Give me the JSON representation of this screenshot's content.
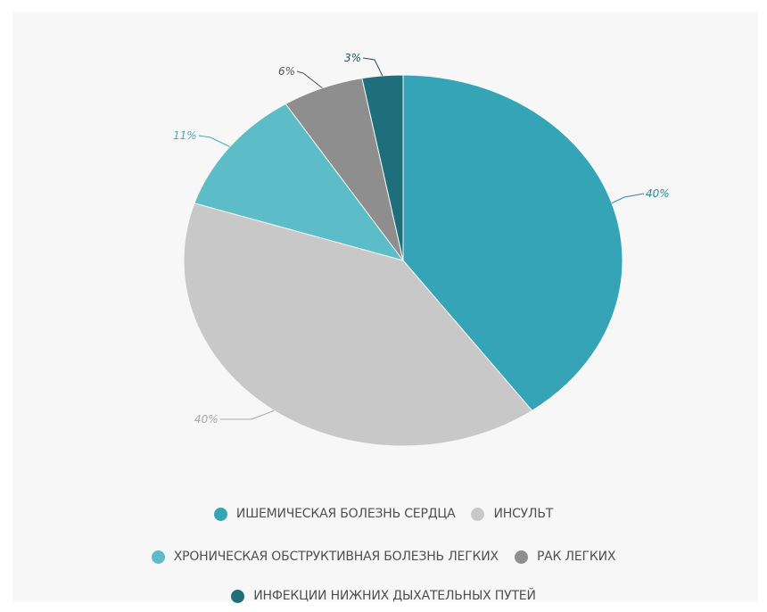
{
  "chart_data": {
    "type": "pie",
    "slices": [
      {
        "name": "ИШЕМИЧЕСКАЯ БОЛЕЗНЬ СЕРДЦА",
        "value": 40,
        "label": "40%",
        "color": "#34a4b6",
        "label_color": "#2a8998"
      },
      {
        "name": "ИНСУЛЬТ",
        "value": 40,
        "label": "40%",
        "color": "#c8c8c8",
        "label_color": "#a8a8a8"
      },
      {
        "name": "ХРОНИЧЕСКАЯ ОБСТРУКТИВНАЯ БОЛЕЗНЬ ЛЕГКИХ",
        "value": 11,
        "label": "11%",
        "color": "#5cbcc8",
        "label_color": "#4aa9b5"
      },
      {
        "name": "РАК ЛЕГКИХ",
        "value": 6,
        "label": "6%",
        "color": "#8e8e8e",
        "label_color": "#555555"
      },
      {
        "name": "ИНФЕКЦИИ НИЖНИХ ДЫХАТЕЛЬНЫХ ПУТЕЙ",
        "value": 3,
        "label": "3%",
        "color": "#1f6e7c",
        "label_color": "#1f5560"
      }
    ],
    "start_angle_deg": 0,
    "direction": "clockwise",
    "legend_position": "bottom"
  }
}
